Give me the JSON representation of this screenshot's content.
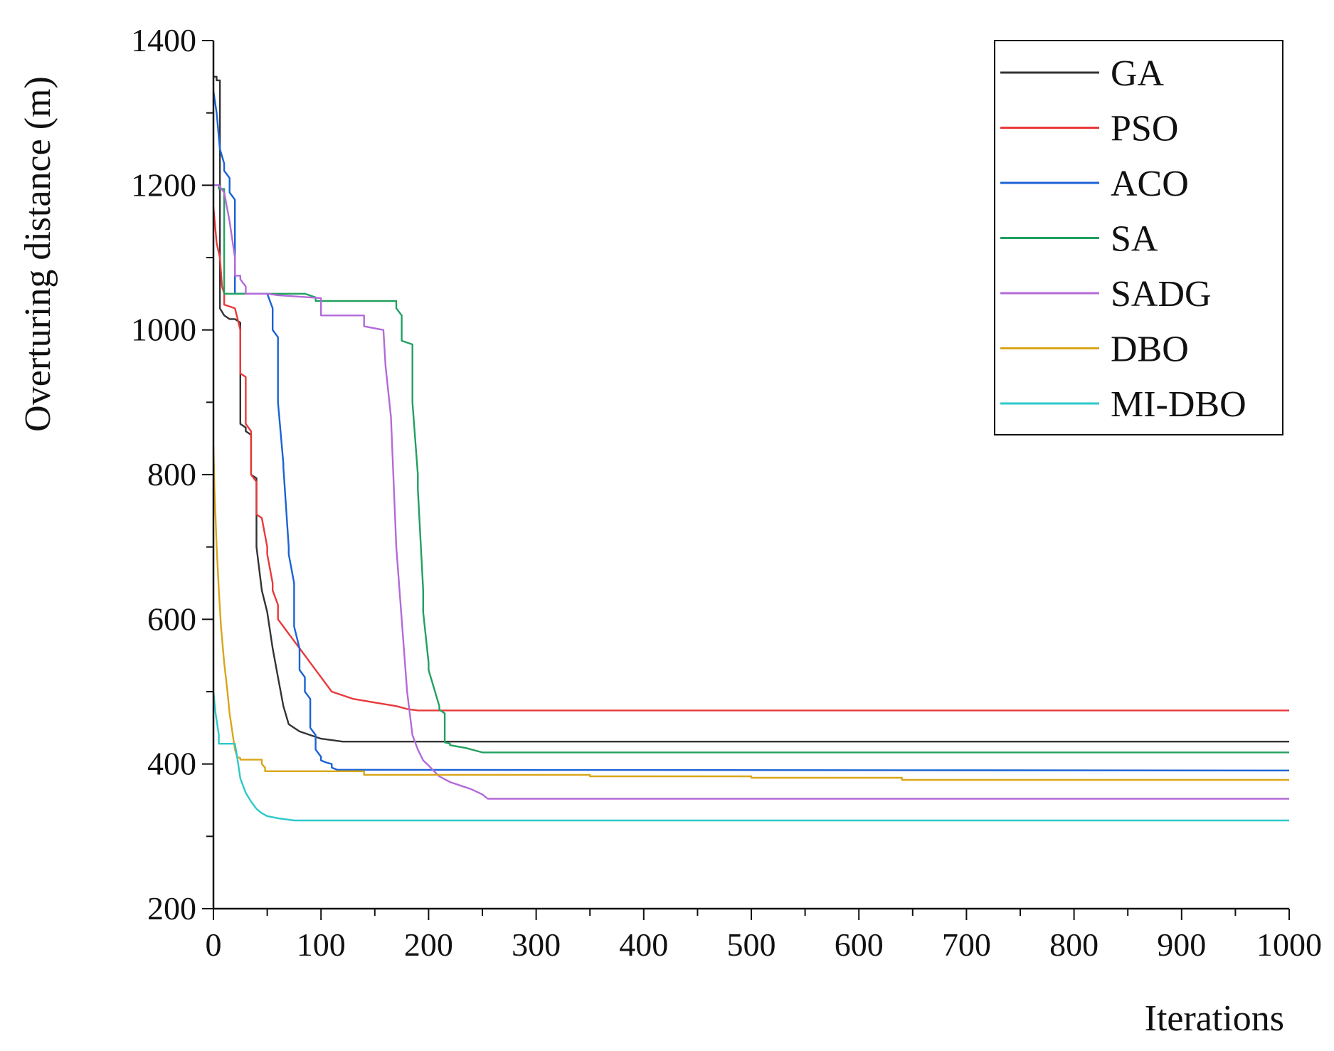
{
  "chart_data": {
    "type": "line",
    "title": "",
    "xlabel": "Iterations",
    "ylabel": "Overturing distance (m)",
    "xlim": [
      0,
      1000
    ],
    "ylim": [
      200,
      1400
    ],
    "xticks": [
      0,
      100,
      200,
      300,
      400,
      500,
      600,
      700,
      800,
      900,
      1000
    ],
    "yticks": [
      200,
      400,
      600,
      800,
      1000,
      1200,
      1400
    ],
    "xtick_labels": [
      "0",
      "100",
      "200",
      "300",
      "400",
      "500",
      "600",
      "700",
      "800",
      "900",
      "1000"
    ],
    "ytick_labels": [
      "200",
      "400",
      "600",
      "800",
      "1000",
      "1200",
      "1400"
    ],
    "grid": false,
    "legend_position": "top-right",
    "series": [
      {
        "name": "GA",
        "color": "#333333",
        "x": [
          0,
          3,
          3,
          6,
          6,
          10,
          10,
          15,
          20,
          25,
          25,
          30,
          30,
          35,
          35,
          40,
          40,
          45,
          50,
          55,
          60,
          65,
          70,
          80,
          90,
          100,
          110,
          120,
          1000
        ],
        "y": [
          1350,
          1350,
          1345,
          1345,
          1030,
          1020,
          1020,
          1015,
          1015,
          1010,
          870,
          865,
          860,
          855,
          800,
          795,
          700,
          640,
          610,
          560,
          520,
          480,
          455,
          445,
          440,
          435,
          433,
          431,
          431
        ]
      },
      {
        "name": "PSO",
        "color": "#e8393b",
        "x": [
          0,
          3,
          6,
          8,
          10,
          10,
          20,
          25,
          25,
          30,
          30,
          35,
          35,
          40,
          40,
          45,
          50,
          50,
          55,
          55,
          60,
          60,
          65,
          70,
          75,
          80,
          90,
          100,
          110,
          130,
          150,
          170,
          180,
          190,
          1000
        ],
        "y": [
          1170,
          1120,
          1100,
          1060,
          1050,
          1035,
          1030,
          1000,
          940,
          935,
          870,
          860,
          800,
          790,
          745,
          740,
          700,
          690,
          650,
          640,
          620,
          600,
          590,
          580,
          570,
          560,
          540,
          520,
          500,
          490,
          485,
          480,
          476,
          474,
          474
        ]
      },
      {
        "name": "ACO",
        "color": "#1a62d6",
        "x": [
          0,
          3,
          6,
          10,
          10,
          15,
          15,
          20,
          20,
          50,
          55,
          55,
          60,
          60,
          65,
          65,
          70,
          70,
          75,
          75,
          80,
          80,
          85,
          85,
          90,
          90,
          95,
          95,
          100,
          100,
          105,
          110,
          110,
          115,
          1000
        ],
        "y": [
          1330,
          1300,
          1250,
          1230,
          1220,
          1210,
          1190,
          1180,
          1050,
          1050,
          1030,
          1000,
          990,
          900,
          815,
          810,
          700,
          690,
          650,
          590,
          560,
          530,
          520,
          500,
          490,
          450,
          440,
          420,
          410,
          405,
          402,
          400,
          395,
          392,
          391
        ]
      },
      {
        "name": "SA",
        "color": "#22a060",
        "x": [
          0,
          5,
          5,
          10,
          10,
          80,
          85,
          95,
          95,
          150,
          170,
          170,
          175,
          175,
          185,
          185,
          190,
          190,
          195,
          195,
          200,
          200,
          210,
          210,
          215,
          215,
          220,
          220,
          235,
          250,
          1000
        ],
        "y": [
          1200,
          1200,
          1195,
          1195,
          1050,
          1050,
          1050,
          1045,
          1040,
          1040,
          1040,
          1030,
          1020,
          985,
          980,
          900,
          800,
          780,
          640,
          610,
          540,
          530,
          480,
          475,
          470,
          430,
          428,
          426,
          422,
          416,
          416
        ]
      },
      {
        "name": "SADG",
        "color": "#b36ad9",
        "x": [
          0,
          5,
          10,
          15,
          20,
          20,
          25,
          25,
          30,
          30,
          50,
          60,
          80,
          100,
          100,
          140,
          140,
          158,
          160,
          165,
          170,
          175,
          180,
          185,
          190,
          195,
          200,
          205,
          210,
          220,
          230,
          240,
          250,
          255,
          1000
        ],
        "y": [
          1200,
          1200,
          1190,
          1150,
          1100,
          1075,
          1075,
          1070,
          1060,
          1050,
          1050,
          1048,
          1046,
          1044,
          1020,
          1020,
          1005,
          1000,
          950,
          880,
          700,
          600,
          500,
          440,
          420,
          405,
          398,
          390,
          383,
          375,
          370,
          365,
          358,
          352,
          352
        ]
      },
      {
        "name": "DBO",
        "color": "#d9a61a",
        "x": [
          0,
          1,
          3,
          5,
          7,
          10,
          13,
          15,
          18,
          20,
          22,
          25,
          25,
          45,
          45,
          48,
          48,
          140,
          140,
          350,
          350,
          500,
          500,
          640,
          640,
          1000
        ],
        "y": [
          840,
          780,
          700,
          640,
          590,
          540,
          500,
          470,
          440,
          420,
          410,
          408,
          406,
          406,
          400,
          395,
          390,
          390,
          385,
          385,
          383,
          383,
          381,
          381,
          378,
          378
        ]
      },
      {
        "name": "MI-DBO",
        "color": "#2ec9c9",
        "x": [
          0,
          2,
          5,
          5,
          20,
          22,
          25,
          30,
          35,
          40,
          45,
          50,
          60,
          75,
          1000
        ],
        "y": [
          500,
          470,
          440,
          428,
          428,
          410,
          380,
          360,
          348,
          338,
          332,
          328,
          325,
          322,
          322
        ]
      }
    ]
  }
}
